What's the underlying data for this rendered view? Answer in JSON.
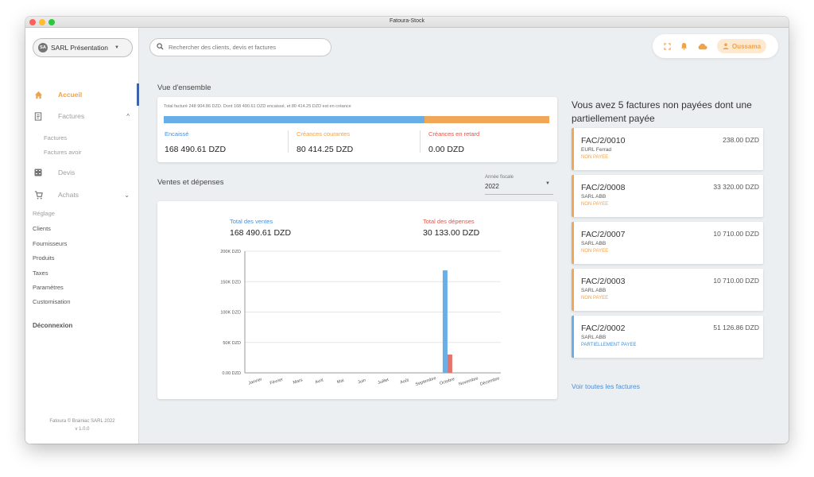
{
  "window": {
    "title": "Fatoura-Stock"
  },
  "sidebar": {
    "company": {
      "initials": "SA",
      "name": "SARL Présentation"
    },
    "nav": {
      "accueil": "Accueil",
      "factures": "Factures",
      "devis": "Devis",
      "achats": "Achats"
    },
    "sub_factures": [
      "Factures",
      "Factures avoir"
    ],
    "reglage": "Réglage",
    "links": [
      "Clients",
      "Fournisseurs",
      "Produits",
      "Taxes",
      "Paramètres",
      "Customisation"
    ],
    "logout": "Déconnexion",
    "footer": {
      "copyright": "Fatoura © Brainiac SARL 2022",
      "version": "v 1.0.0"
    }
  },
  "topbar": {
    "search_placeholder": "Rechercher des clients, devis et factures",
    "user": "Oussama"
  },
  "overview": {
    "title": "Vue d'ensemble",
    "note": "Total facturé 248 904.86 DZD. Dont 168 490.61 DZD encaissé, et 80 414.25 DZD est en créance",
    "encaisse_ratio": 0.677,
    "kpis": [
      {
        "label": "Encaissé",
        "value": "168 490.61 DZD",
        "color": "#4a8fd9"
      },
      {
        "label": "Créances courantes",
        "value": "80 414.25 DZD",
        "color": "#f0a24a"
      },
      {
        "label": "Créances en retard",
        "value": "0.00 DZD",
        "color": "#e5534b"
      }
    ]
  },
  "sales": {
    "title": "Ventes et dépenses",
    "year_label": "Année fiscale",
    "year": "2022",
    "total_sales_label": "Total des ventes",
    "total_sales": "168 490.61 DZD",
    "total_expenses_label": "Total des dépenses",
    "total_expenses": "30 133.00 DZD"
  },
  "chart_data": {
    "type": "bar",
    "categories": [
      "Janvier",
      "Février",
      "Mars",
      "Avril",
      "Mai",
      "Juin",
      "Juillet",
      "Août",
      "Septembre",
      "Octobre",
      "Novembre",
      "Décembre"
    ],
    "series": [
      {
        "values": [
          0,
          0,
          0,
          0,
          0,
          0,
          0,
          0,
          0,
          168490.61,
          0,
          0
        ],
        "color": "#6aaee8"
      },
      {
        "values": [
          0,
          0,
          0,
          0,
          0,
          0,
          0,
          0,
          0,
          30133,
          0,
          0
        ],
        "color": "#e5736b"
      }
    ],
    "yticks": [
      "0.00 DZD",
      "50K DZD",
      "100K DZD",
      "150K DZD",
      "200K DZD"
    ],
    "ylim": [
      0,
      200000
    ],
    "grid": true
  },
  "unpaid": {
    "heading": "Vous avez 5 factures non payées dont une partiellement payée",
    "invoices": [
      {
        "number": "FAC/2/0010",
        "amount": "238.00 DZD",
        "client": "EURL Ferrad",
        "status": "NON PAYEE"
      },
      {
        "number": "FAC/2/0008",
        "amount": "33 320.00 DZD",
        "client": "SARL ABB",
        "status": "NON PAYEE"
      },
      {
        "number": "FAC/2/0007",
        "amount": "10 710.00 DZD",
        "client": "SARL ABB",
        "status": "NON PAYEE"
      },
      {
        "number": "FAC/2/0003",
        "amount": "10 710.00 DZD",
        "client": "SARL ABB",
        "status": "NON PAYEE"
      },
      {
        "number": "FAC/2/0002",
        "amount": "51 126.86 DZD",
        "client": "SARL ABB",
        "status": "PARTIELLEMENT PAYEE"
      }
    ],
    "see_all": "Voir toutes les factures"
  }
}
